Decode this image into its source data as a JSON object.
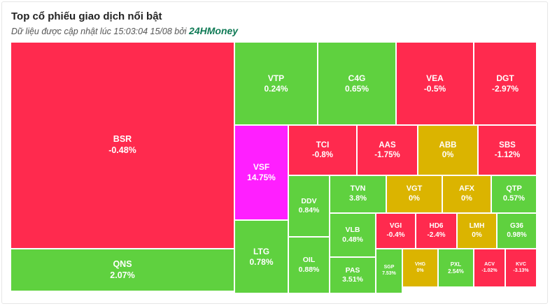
{
  "header": {
    "title": "Top cổ phiếu giao dịch nổi bật",
    "subtitle_prefix": "Dữ liệu được cập nhật lúc 15:03:04 15/08 bởi",
    "brand": "24HMoney"
  },
  "colors": {
    "up": "#5fd13f",
    "down": "#ff2a4e",
    "flat": "#dbb400",
    "ceiling": "#ff1fff"
  },
  "chart_data": {
    "type": "treemap",
    "title": "Top cổ phiếu giao dịch nổi bật",
    "items": [
      {
        "ticker": "BSR",
        "change": "-0.48%",
        "status": "down"
      },
      {
        "ticker": "QNS",
        "change": "2.07%",
        "status": "up"
      },
      {
        "ticker": "VTP",
        "change": "0.24%",
        "status": "up"
      },
      {
        "ticker": "C4G",
        "change": "0.65%",
        "status": "up"
      },
      {
        "ticker": "VEA",
        "change": "-0.5%",
        "status": "down"
      },
      {
        "ticker": "DGT",
        "change": "-2.97%",
        "status": "down"
      },
      {
        "ticker": "VSF",
        "change": "14.75%",
        "status": "ceiling"
      },
      {
        "ticker": "LTG",
        "change": "0.78%",
        "status": "up"
      },
      {
        "ticker": "TCI",
        "change": "-0.8%",
        "status": "down"
      },
      {
        "ticker": "AAS",
        "change": "-1.75%",
        "status": "down"
      },
      {
        "ticker": "ABB",
        "change": "0%",
        "status": "flat"
      },
      {
        "ticker": "SBS",
        "change": "-1.12%",
        "status": "down"
      },
      {
        "ticker": "DDV",
        "change": "0.84%",
        "status": "up"
      },
      {
        "ticker": "TVN",
        "change": "3.8%",
        "status": "up"
      },
      {
        "ticker": "VGT",
        "change": "0%",
        "status": "flat"
      },
      {
        "ticker": "AFX",
        "change": "0%",
        "status": "flat"
      },
      {
        "ticker": "QTP",
        "change": "0.57%",
        "status": "up"
      },
      {
        "ticker": "OIL",
        "change": "0.88%",
        "status": "up"
      },
      {
        "ticker": "VLB",
        "change": "0.48%",
        "status": "up"
      },
      {
        "ticker": "VGI",
        "change": "-0.4%",
        "status": "down"
      },
      {
        "ticker": "HD6",
        "change": "-2.4%",
        "status": "down"
      },
      {
        "ticker": "LMH",
        "change": "0%",
        "status": "flat"
      },
      {
        "ticker": "G36",
        "change": "0.98%",
        "status": "up"
      },
      {
        "ticker": "PAS",
        "change": "3.51%",
        "status": "up"
      },
      {
        "ticker": "SGP",
        "change": "7.53%",
        "status": "up"
      },
      {
        "ticker": "VHG",
        "change": "0%",
        "status": "flat"
      },
      {
        "ticker": "PXL",
        "change": "2.54%",
        "status": "up"
      },
      {
        "ticker": "ACV",
        "change": "-1.02%",
        "status": "down"
      },
      {
        "ticker": "KVC",
        "change": "-3.13%",
        "status": "down"
      }
    ]
  }
}
